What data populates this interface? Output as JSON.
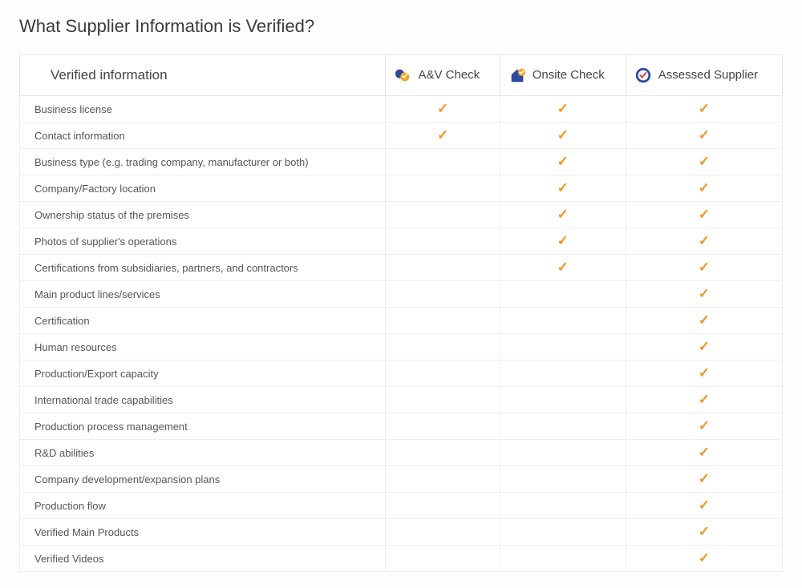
{
  "title": "What Supplier Information is Verified?",
  "columns_header": "Verified information",
  "tiers": [
    {
      "key": "av",
      "label": "A&V Check",
      "icon": "av-icon"
    },
    {
      "key": "onsite",
      "label": "Onsite Check",
      "icon": "onsite-icon"
    },
    {
      "key": "assessed",
      "label": "Assessed Supplier",
      "icon": "assessed-icon"
    }
  ],
  "check_glyph": "✓",
  "check_color": "#f5941e",
  "rows": [
    {
      "label": "Business license",
      "av": true,
      "onsite": true,
      "assessed": true
    },
    {
      "label": "Contact information",
      "av": true,
      "onsite": true,
      "assessed": true
    },
    {
      "label": "Business type (e.g. trading company, manufacturer or both)",
      "av": false,
      "onsite": true,
      "assessed": true
    },
    {
      "label": "Company/Factory location",
      "av": false,
      "onsite": true,
      "assessed": true
    },
    {
      "label": "Ownership status of the premises",
      "av": false,
      "onsite": true,
      "assessed": true
    },
    {
      "label": "Photos of supplier's operations",
      "av": false,
      "onsite": true,
      "assessed": true
    },
    {
      "label": "Certifications from subsidiaries, partners, and contractors",
      "av": false,
      "onsite": true,
      "assessed": true
    },
    {
      "label": "Main product lines/services",
      "av": false,
      "onsite": false,
      "assessed": true
    },
    {
      "label": "Certification",
      "av": false,
      "onsite": false,
      "assessed": true
    },
    {
      "label": "Human resources",
      "av": false,
      "onsite": false,
      "assessed": true
    },
    {
      "label": "Production/Export capacity",
      "av": false,
      "onsite": false,
      "assessed": true
    },
    {
      "label": "International trade capabilities",
      "av": false,
      "onsite": false,
      "assessed": true
    },
    {
      "label": "Production process management",
      "av": false,
      "onsite": false,
      "assessed": true
    },
    {
      "label": "R&D abilities",
      "av": false,
      "onsite": false,
      "assessed": true
    },
    {
      "label": "Company development/expansion plans",
      "av": false,
      "onsite": false,
      "assessed": true
    },
    {
      "label": "Production flow",
      "av": false,
      "onsite": false,
      "assessed": true
    },
    {
      "label": "Verified Main Products",
      "av": false,
      "onsite": false,
      "assessed": true
    },
    {
      "label": "Verified Videos",
      "av": false,
      "onsite": false,
      "assessed": true
    }
  ],
  "colors": {
    "border": "#e6e6e6",
    "row_border": "#eeeeee",
    "text": "#555555",
    "heading": "#3b3b3b",
    "background": "#ffffff"
  }
}
